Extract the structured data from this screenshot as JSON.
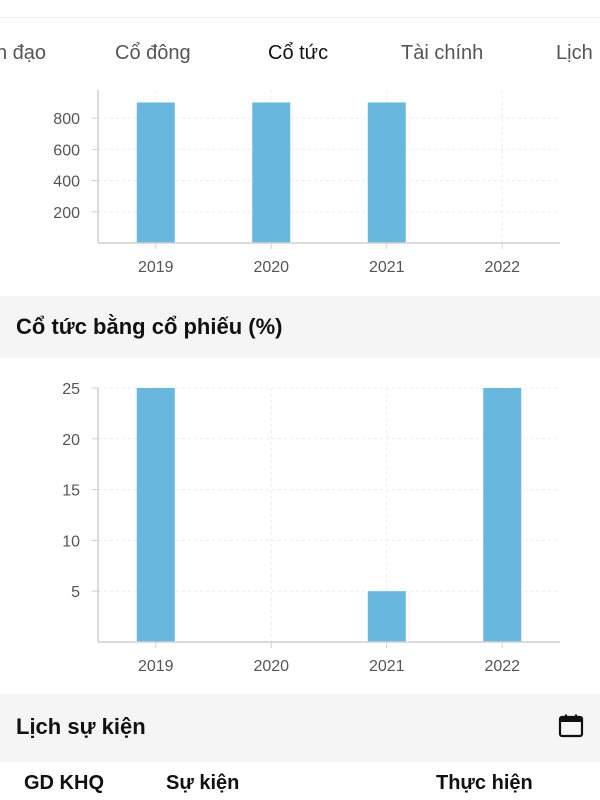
{
  "tabs": [
    {
      "label": "n đạo"
    },
    {
      "label": "Cổ đông"
    },
    {
      "label": "Cổ tức"
    },
    {
      "label": "Tài chính"
    },
    {
      "label": "Lịch"
    }
  ],
  "section_stock_dividend": {
    "title": "Cổ tức bằng cổ phiếu (%)"
  },
  "section_events": {
    "title": "Lịch sự kiện"
  },
  "events_table": {
    "headers": [
      "GD KHQ",
      "Sự kiện",
      "Thực hiện"
    ]
  },
  "colors": {
    "bar": "#68b7df",
    "axis": "#d0d0d0",
    "grid": "#ebebeb",
    "tick_text": "#555555",
    "accent_underline": "#111111"
  },
  "icons": {
    "calendar": "calendar-icon"
  },
  "chart_data": [
    {
      "type": "bar",
      "categories": [
        "2019",
        "2020",
        "2021",
        "2022"
      ],
      "values": [
        900,
        900,
        900,
        0
      ],
      "yticks": [
        200,
        400,
        600,
        800
      ],
      "ylim": [
        0,
        980
      ],
      "grid": true
    },
    {
      "type": "bar",
      "title": "Cổ tức bằng cổ phiếu (%)",
      "categories": [
        "2019",
        "2020",
        "2021",
        "2022"
      ],
      "values": [
        25,
        0,
        5,
        25
      ],
      "yticks": [
        5,
        10,
        15,
        20,
        25
      ],
      "ylim": [
        0,
        25
      ],
      "grid": true
    }
  ]
}
